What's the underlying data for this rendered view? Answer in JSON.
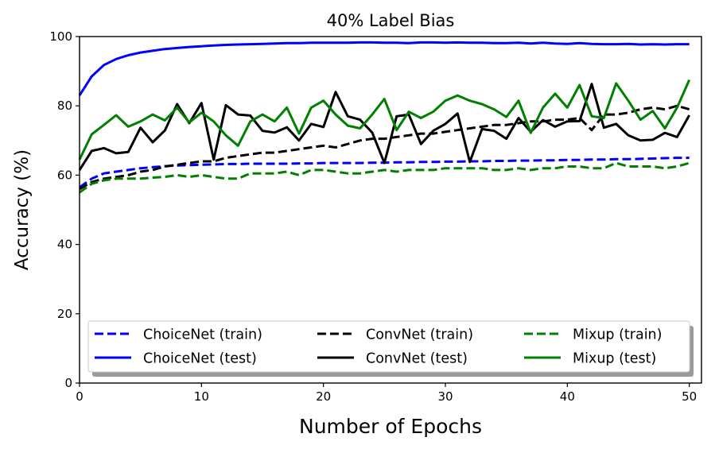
{
  "chart_data": {
    "type": "line",
    "title": "40% Label Bias",
    "xlabel": "Number of Epochs",
    "ylabel": "Accuracy (%)",
    "xlim": [
      0,
      51
    ],
    "ylim": [
      0,
      100
    ],
    "xticks": [
      0,
      10,
      20,
      30,
      40,
      50
    ],
    "yticks": [
      0,
      20,
      40,
      60,
      80,
      100
    ],
    "grid": false,
    "legend_position": "lower-center",
    "legend_columns": 3,
    "x": [
      0,
      1,
      2,
      3,
      4,
      5,
      6,
      7,
      8,
      9,
      10,
      11,
      12,
      13,
      14,
      15,
      16,
      17,
      18,
      19,
      20,
      21,
      22,
      23,
      24,
      25,
      26,
      27,
      28,
      29,
      30,
      31,
      32,
      33,
      34,
      35,
      36,
      37,
      38,
      39,
      40,
      41,
      42,
      43,
      44,
      45,
      46,
      47,
      48,
      49,
      50
    ],
    "series": [
      {
        "name": "ChoiceNet (train)",
        "color": "#0000ff",
        "style": "dashed",
        "values": [
          56.5,
          59,
          60.5,
          61,
          61.5,
          62,
          62.3,
          62.6,
          62.8,
          62.9,
          63,
          63.1,
          63.2,
          63.2,
          63.3,
          63.3,
          63.3,
          63.3,
          63.4,
          63.4,
          63.5,
          63.5,
          63.5,
          63.5,
          63.6,
          63.6,
          63.7,
          63.7,
          63.8,
          63.8,
          63.9,
          63.9,
          64,
          64,
          64.1,
          64.1,
          64.2,
          64.2,
          64.3,
          64.3,
          64.4,
          64.4,
          64.5,
          64.5,
          64.6,
          64.6,
          64.7,
          64.8,
          64.9,
          65,
          65
        ]
      },
      {
        "name": "ChoiceNet (test)",
        "color": "#0000ff",
        "style": "solid",
        "values": [
          83,
          88.5,
          91.8,
          93.5,
          94.6,
          95.4,
          95.9,
          96.4,
          96.7,
          97,
          97.2,
          97.4,
          97.6,
          97.7,
          97.8,
          97.9,
          98,
          98.1,
          98.1,
          98.2,
          98.2,
          98.2,
          98.2,
          98.3,
          98.3,
          98.2,
          98.2,
          98.1,
          98.3,
          98.3,
          98.2,
          98.3,
          98.2,
          98.2,
          98.1,
          98.1,
          98.2,
          98,
          98.2,
          98,
          97.9,
          98.1,
          97.9,
          97.8,
          97.8,
          97.9,
          97.7,
          97.8,
          97.7,
          97.8,
          97.8
        ]
      },
      {
        "name": "ConvNet (train)",
        "color": "#000000",
        "style": "dashed",
        "values": [
          56,
          58,
          59,
          59.5,
          60,
          61,
          61.5,
          62.5,
          63,
          63.5,
          64,
          64,
          65,
          65.5,
          66,
          66.5,
          66.5,
          67,
          67.5,
          68,
          68.5,
          68,
          69,
          70,
          70.5,
          70.5,
          71,
          71.5,
          72,
          72,
          72.5,
          73,
          73.5,
          74,
          74.5,
          74.5,
          75,
          75.5,
          75.5,
          76,
          76,
          76.5,
          73,
          77.5,
          77.5,
          78,
          79,
          79.5,
          79,
          80,
          79
        ]
      },
      {
        "name": "ConvNet (test)",
        "color": "#000000",
        "style": "solid",
        "values": [
          61.5,
          67,
          67.8,
          66.3,
          66.7,
          73.7,
          69.5,
          72.9,
          80.5,
          75,
          80.8,
          64.5,
          80.2,
          77.5,
          77.2,
          72.8,
          72.3,
          73.8,
          70,
          74.8,
          73.9,
          84,
          77,
          76,
          72.3,
          63.5,
          77,
          77.5,
          69,
          72.8,
          74.8,
          77.8,
          63.8,
          73.3,
          72.8,
          70.5,
          76.5,
          72.5,
          75.9,
          74,
          75.5,
          75.6,
          86.3,
          73.7,
          74.8,
          71.5,
          70,
          70.2,
          72.2,
          71,
          77.3
        ]
      },
      {
        "name": "Mixup (train)",
        "color": "#008000",
        "style": "dashed",
        "values": [
          55,
          57.5,
          58.5,
          59,
          59,
          59,
          59.3,
          59.5,
          60,
          59.5,
          60,
          59.5,
          59,
          59,
          60.5,
          60.5,
          60.5,
          61,
          60,
          61.5,
          61.5,
          61,
          60.5,
          60.5,
          61,
          61.5,
          61,
          61.5,
          61.5,
          61.5,
          62,
          62,
          62,
          62,
          61.5,
          61.5,
          62,
          61.5,
          62,
          62,
          62.5,
          62.5,
          62,
          62,
          63.5,
          62.5,
          62.5,
          62.5,
          62,
          62.5,
          63.5
        ]
      },
      {
        "name": "Mixup (test)",
        "color": "#008000",
        "style": "solid",
        "values": [
          64.5,
          71.8,
          74.5,
          77.3,
          74,
          75.5,
          77.5,
          75.8,
          79.5,
          75.2,
          78,
          75.5,
          71.5,
          68.5,
          75.5,
          77.5,
          75.5,
          79.5,
          72,
          79.5,
          81.5,
          77.5,
          74.3,
          73.5,
          77.5,
          82,
          73,
          78.3,
          76.5,
          78.3,
          81.5,
          83,
          81.5,
          80.5,
          79,
          76.8,
          81.5,
          72.2,
          79.5,
          83.5,
          79.5,
          86,
          77,
          76.5,
          86.5,
          81.5,
          76,
          78.5,
          73.5,
          79.5,
          87.5
        ]
      }
    ]
  }
}
